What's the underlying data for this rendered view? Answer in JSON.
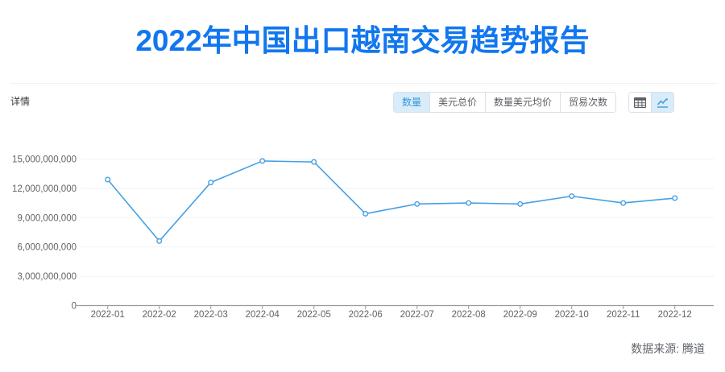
{
  "header": {
    "title": "2022年中国出口越南交易趋势报告"
  },
  "toolbar": {
    "section_label": "详情",
    "tabs": [
      {
        "label": "数量",
        "active": true
      },
      {
        "label": "美元总价",
        "active": false
      },
      {
        "label": "数量美元均价",
        "active": false
      },
      {
        "label": "贸易次数",
        "active": false
      }
    ],
    "view_toggles": [
      {
        "icon": "table-icon",
        "active": false
      },
      {
        "icon": "line-chart-icon",
        "active": true
      }
    ]
  },
  "footer": {
    "source": "数据来源: 腾道"
  },
  "colors": {
    "title": "#1277ee",
    "line": "#46a0e2",
    "marker_fill": "#ffffff",
    "grid": "#eef2f8",
    "axis": "#97999e",
    "axis_label": "#606266",
    "active_tab_bg": "#d8ecfa",
    "active_tab_text": "#3596db"
  },
  "chart_data": {
    "type": "line",
    "title": "",
    "xlabel": "",
    "ylabel": "",
    "categories": [
      "2022-01",
      "2022-02",
      "2022-03",
      "2022-04",
      "2022-05",
      "2022-06",
      "2022-07",
      "2022-08",
      "2022-09",
      "2022-10",
      "2022-11",
      "2022-12"
    ],
    "values": [
      12900000000,
      6600000000,
      12600000000,
      14800000000,
      14700000000,
      9400000000,
      10400000000,
      10500000000,
      10400000000,
      11200000000,
      10500000000,
      11000000000
    ],
    "ylim": [
      0,
      15000000000
    ],
    "yticks": [
      0,
      3000000000,
      6000000000,
      9000000000,
      12000000000,
      15000000000
    ],
    "ytick_labels": [
      "0",
      "3,000,000,000",
      "6,000,000,000",
      "9,000,000,000",
      "12,000,000,000",
      "15,000,000,000"
    ],
    "grid": true,
    "legend_position": "none",
    "marker": "hollow-circle"
  }
}
